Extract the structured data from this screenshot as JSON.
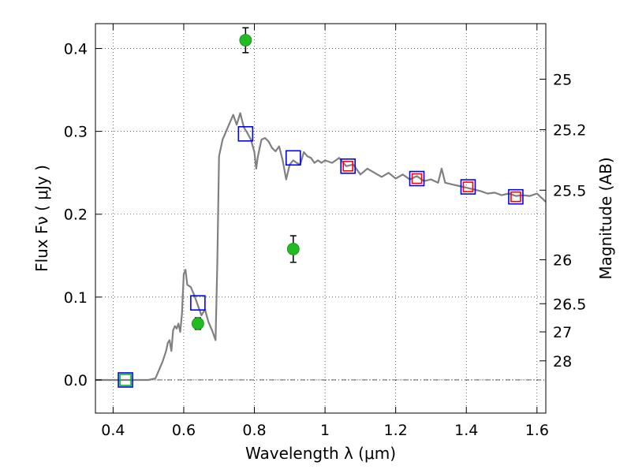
{
  "chart_data": {
    "type": "scatter",
    "title": "",
    "xlabel": "Wavelength  λ (μm)",
    "ylabel": "Flux  Fν  ( μJy )",
    "ylabel_right": "Magnitude (AB)",
    "xlim": [
      0.35,
      1.625
    ],
    "ylim": [
      -0.04,
      0.43
    ],
    "grid": true,
    "x_ticks": [
      {
        "value": 0.4,
        "label": "0.4"
      },
      {
        "value": 0.6,
        "label": "0.6"
      },
      {
        "value": 0.8,
        "label": "0.8"
      },
      {
        "value": 1.0,
        "label": "1"
      },
      {
        "value": 1.2,
        "label": "1.2"
      },
      {
        "value": 1.4,
        "label": "1.4"
      },
      {
        "value": 1.6,
        "label": "1.6"
      }
    ],
    "y_ticks": [
      {
        "value": 0.0,
        "label": "0.0"
      },
      {
        "value": 0.1,
        "label": "0.1"
      },
      {
        "value": 0.2,
        "label": "0.2"
      },
      {
        "value": 0.3,
        "label": "0.3"
      },
      {
        "value": 0.4,
        "label": "0.4"
      }
    ],
    "right_ticks": [
      {
        "flux": 0.363,
        "label": "25"
      },
      {
        "flux": 0.302,
        "label": "25.2"
      },
      {
        "flux": 0.229,
        "label": "25.5"
      },
      {
        "flux": 0.145,
        "label": "26"
      },
      {
        "flux": 0.092,
        "label": "26.5"
      },
      {
        "flux": 0.058,
        "label": "27"
      },
      {
        "flux": 0.023,
        "label": "28"
      }
    ],
    "series": [
      {
        "kind": "line",
        "color": "#808080",
        "points": [
          [
            0.35,
            0.0
          ],
          [
            0.5,
            0.0
          ],
          [
            0.52,
            0.002
          ],
          [
            0.54,
            0.022
          ],
          [
            0.55,
            0.035
          ],
          [
            0.555,
            0.045
          ],
          [
            0.56,
            0.048
          ],
          [
            0.565,
            0.035
          ],
          [
            0.57,
            0.06
          ],
          [
            0.575,
            0.065
          ],
          [
            0.58,
            0.062
          ],
          [
            0.585,
            0.068
          ],
          [
            0.59,
            0.058
          ],
          [
            0.595,
            0.08
          ],
          [
            0.6,
            0.128
          ],
          [
            0.605,
            0.133
          ],
          [
            0.61,
            0.115
          ],
          [
            0.62,
            0.112
          ],
          [
            0.63,
            0.102
          ],
          [
            0.64,
            0.09
          ],
          [
            0.65,
            0.078
          ],
          [
            0.66,
            0.085
          ],
          [
            0.67,
            0.07
          ],
          [
            0.68,
            0.06
          ],
          [
            0.69,
            0.048
          ],
          [
            0.695,
            0.14
          ],
          [
            0.7,
            0.27
          ],
          [
            0.71,
            0.29
          ],
          [
            0.72,
            0.3
          ],
          [
            0.73,
            0.31
          ],
          [
            0.74,
            0.32
          ],
          [
            0.75,
            0.308
          ],
          [
            0.76,
            0.322
          ],
          [
            0.77,
            0.305
          ],
          [
            0.78,
            0.298
          ],
          [
            0.79,
            0.29
          ],
          [
            0.8,
            0.275
          ],
          [
            0.805,
            0.255
          ],
          [
            0.81,
            0.27
          ],
          [
            0.82,
            0.29
          ],
          [
            0.83,
            0.292
          ],
          [
            0.84,
            0.288
          ],
          [
            0.85,
            0.28
          ],
          [
            0.86,
            0.276
          ],
          [
            0.87,
            0.282
          ],
          [
            0.88,
            0.265
          ],
          [
            0.89,
            0.242
          ],
          [
            0.9,
            0.26
          ],
          [
            0.91,
            0.265
          ],
          [
            0.92,
            0.262
          ],
          [
            0.93,
            0.26
          ],
          [
            0.94,
            0.275
          ],
          [
            0.95,
            0.27
          ],
          [
            0.96,
            0.268
          ],
          [
            0.97,
            0.262
          ],
          [
            0.98,
            0.265
          ],
          [
            0.99,
            0.262
          ],
          [
            1.0,
            0.265
          ],
          [
            1.02,
            0.262
          ],
          [
            1.04,
            0.268
          ],
          [
            1.06,
            0.258
          ],
          [
            1.08,
            0.26
          ],
          [
            1.1,
            0.248
          ],
          [
            1.12,
            0.255
          ],
          [
            1.14,
            0.25
          ],
          [
            1.16,
            0.245
          ],
          [
            1.18,
            0.25
          ],
          [
            1.2,
            0.243
          ],
          [
            1.22,
            0.248
          ],
          [
            1.24,
            0.242
          ],
          [
            1.26,
            0.246
          ],
          [
            1.28,
            0.24
          ],
          [
            1.3,
            0.242
          ],
          [
            1.32,
            0.238
          ],
          [
            1.33,
            0.255
          ],
          [
            1.34,
            0.238
          ],
          [
            1.36,
            0.236
          ],
          [
            1.38,
            0.234
          ],
          [
            1.4,
            0.232
          ],
          [
            1.42,
            0.23
          ],
          [
            1.44,
            0.228
          ],
          [
            1.46,
            0.225
          ],
          [
            1.48,
            0.226
          ],
          [
            1.5,
            0.223
          ],
          [
            1.52,
            0.225
          ],
          [
            1.54,
            0.222
          ],
          [
            1.56,
            0.223
          ],
          [
            1.58,
            0.222
          ],
          [
            1.6,
            0.225
          ],
          [
            1.625,
            0.215
          ]
        ]
      },
      {
        "kind": "open-square",
        "color": "#0000ff",
        "points": [
          [
            0.435,
            0.0
          ],
          [
            0.64,
            0.093
          ],
          [
            0.775,
            0.297
          ],
          [
            0.91,
            0.268
          ],
          [
            1.065,
            0.258
          ],
          [
            1.26,
            0.243
          ],
          [
            1.405,
            0.233
          ],
          [
            1.54,
            0.221
          ]
        ]
      },
      {
        "kind": "open-square",
        "color": "#ff0000",
        "points": [
          [
            1.065,
            0.258
          ],
          [
            1.26,
            0.243
          ],
          [
            1.405,
            0.233
          ],
          [
            1.54,
            0.221
          ]
        ]
      },
      {
        "kind": "open-square",
        "color": "#00bb00",
        "points": [
          [
            0.435,
            0.0
          ]
        ]
      },
      {
        "kind": "point-errorbar",
        "color": "#22bb22",
        "points": [
          {
            "x": 0.64,
            "y": 0.068,
            "err": 0.007
          },
          {
            "x": 0.775,
            "y": 0.41,
            "err": 0.015
          },
          {
            "x": 0.91,
            "y": 0.158,
            "err": 0.016
          }
        ]
      }
    ]
  }
}
